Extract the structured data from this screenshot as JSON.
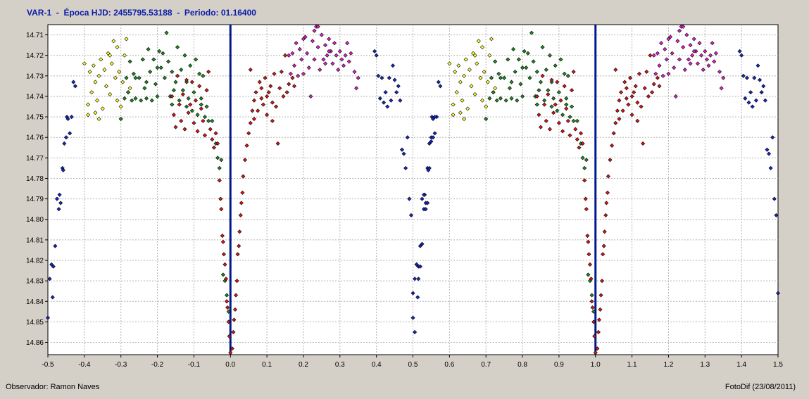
{
  "header": {
    "title": "VAR-1  -  Época HJD: 2455795.53188  -  Periodo: 01.16400"
  },
  "footer": {
    "observer": "Observador: Ramon Naves",
    "credit": "FotoDif (23/08/2011)"
  },
  "chart_data": {
    "type": "scatter",
    "title": "VAR-1  -  Época HJD: 2455795.53188  -  Periodo: 01.16400",
    "xlabel": "",
    "ylabel": "",
    "xlim": [
      -0.5,
      1.5
    ],
    "ylim": [
      14.705,
      14.866
    ],
    "y_inverted": true,
    "grid": true,
    "x_ticks": [
      "-0.5",
      "-0.4",
      "-0.3",
      "-0.2",
      "-0.1",
      "0.0",
      "0.1",
      "0.2",
      "0.3",
      "0.4",
      "0.5",
      "0.6",
      "0.7",
      "0.8",
      "0.9",
      "1.0",
      "1.1",
      "1.2",
      "1.3",
      "1.4",
      "1.5"
    ],
    "y_ticks": [
      "14.71",
      "14.72",
      "14.73",
      "14.74",
      "14.75",
      "14.76",
      "14.77",
      "14.78",
      "14.79",
      "14.80",
      "14.81",
      "14.82",
      "14.83",
      "14.84",
      "14.85",
      "14.86"
    ],
    "vertical_lines": [
      0.0,
      1.0
    ],
    "vertical_line_color": "#001a8c",
    "repeat_period": 1.0,
    "series": [
      {
        "color": "#ffff33",
        "points": [
          [
            -0.4,
            14.724
          ],
          [
            -0.39,
            14.744
          ],
          [
            -0.385,
            14.728
          ],
          [
            -0.38,
            14.738
          ],
          [
            -0.375,
            14.725
          ],
          [
            -0.37,
            14.733
          ],
          [
            -0.365,
            14.742
          ],
          [
            -0.36,
            14.73
          ],
          [
            -0.355,
            14.722
          ],
          [
            -0.35,
            14.746
          ],
          [
            -0.345,
            14.727
          ],
          [
            -0.34,
            14.735
          ],
          [
            -0.335,
            14.719
          ],
          [
            -0.33,
            14.739
          ],
          [
            -0.325,
            14.724
          ],
          [
            -0.32,
            14.713
          ],
          [
            -0.315,
            14.731
          ],
          [
            -0.31,
            14.742
          ],
          [
            -0.305,
            14.728
          ],
          [
            -0.3,
            14.745
          ],
          [
            -0.295,
            14.733
          ],
          [
            -0.29,
            14.72
          ],
          [
            -0.285,
            14.712
          ],
          [
            -0.28,
            14.738
          ],
          [
            -0.275,
            14.736
          ],
          [
            -0.39,
            14.749
          ],
          [
            -0.37,
            14.748
          ],
          [
            -0.36,
            14.751
          ],
          [
            -0.33,
            14.72
          ],
          [
            -0.31,
            14.716
          ]
        ]
      },
      {
        "color": "#1e8c1e",
        "points": [
          [
            -0.3,
            14.751
          ],
          [
            -0.29,
            14.741
          ],
          [
            -0.285,
            14.731
          ],
          [
            -0.28,
            14.738
          ],
          [
            -0.275,
            14.723
          ],
          [
            -0.27,
            14.742
          ],
          [
            -0.265,
            14.729
          ],
          [
            -0.26,
            14.741
          ],
          [
            -0.25,
            14.731
          ],
          [
            -0.245,
            14.742
          ],
          [
            -0.24,
            14.722
          ],
          [
            -0.235,
            14.736
          ],
          [
            -0.23,
            14.741
          ],
          [
            -0.225,
            14.717
          ],
          [
            -0.22,
            14.728
          ],
          [
            -0.215,
            14.742
          ],
          [
            -0.21,
            14.722
          ],
          [
            -0.205,
            14.734
          ],
          [
            -0.2,
            14.74
          ],
          [
            -0.195,
            14.718
          ],
          [
            -0.19,
            14.726
          ],
          [
            -0.185,
            14.719
          ],
          [
            -0.18,
            14.731
          ],
          [
            -0.175,
            14.709
          ],
          [
            -0.17,
            14.723
          ],
          [
            -0.165,
            14.74
          ],
          [
            -0.16,
            14.728
          ],
          [
            -0.155,
            14.737
          ],
          [
            -0.15,
            14.733
          ],
          [
            -0.145,
            14.716
          ],
          [
            -0.14,
            14.742
          ],
          [
            -0.135,
            14.727
          ],
          [
            -0.13,
            14.737
          ],
          [
            -0.125,
            14.72
          ],
          [
            -0.12,
            14.733
          ],
          [
            -0.115,
            14.741
          ],
          [
            -0.11,
            14.725
          ],
          [
            -0.105,
            14.747
          ],
          [
            -0.1,
            14.738
          ],
          [
            -0.095,
            14.722
          ],
          [
            -0.09,
            14.749
          ],
          [
            -0.085,
            14.729
          ],
          [
            -0.08,
            14.741
          ],
          [
            -0.075,
            14.73
          ],
          [
            -0.07,
            14.75
          ],
          [
            -0.065,
            14.745
          ],
          [
            -0.06,
            14.752
          ],
          [
            -0.05,
            14.752
          ],
          [
            -0.04,
            14.763
          ],
          [
            -0.035,
            14.77
          ],
          [
            -0.03,
            14.775
          ],
          [
            -0.025,
            14.771
          ],
          [
            -0.02,
            14.827
          ],
          [
            -0.015,
            14.83
          ],
          [
            -0.01,
            14.837
          ],
          [
            -0.005,
            14.845
          ],
          [
            -0.26,
            14.731
          ],
          [
            -0.23,
            14.733
          ],
          [
            -0.2,
            14.726
          ],
          [
            -0.16,
            14.744
          ],
          [
            -0.08,
            14.744
          ],
          [
            -0.12,
            14.745
          ]
        ]
      },
      {
        "color": "#e01414",
        "points": [
          [
            -0.16,
            14.74
          ],
          [
            -0.155,
            14.749
          ],
          [
            -0.15,
            14.755
          ],
          [
            -0.145,
            14.73
          ],
          [
            -0.14,
            14.744
          ],
          [
            -0.135,
            14.752
          ],
          [
            -0.13,
            14.739
          ],
          [
            -0.125,
            14.756
          ],
          [
            -0.12,
            14.732
          ],
          [
            -0.115,
            14.748
          ],
          [
            -0.11,
            14.744
          ],
          [
            -0.105,
            14.733
          ],
          [
            -0.1,
            14.753
          ],
          [
            -0.095,
            14.742
          ],
          [
            -0.09,
            14.757
          ],
          [
            -0.085,
            14.735
          ],
          [
            -0.08,
            14.746
          ],
          [
            -0.075,
            14.752
          ],
          [
            -0.07,
            14.759
          ],
          [
            -0.065,
            14.737
          ],
          [
            -0.06,
            14.728
          ],
          [
            -0.055,
            14.756
          ],
          [
            -0.05,
            14.761
          ],
          [
            -0.045,
            14.765
          ],
          [
            -0.04,
            14.758
          ],
          [
            -0.035,
            14.763
          ],
          [
            -0.03,
            14.781
          ],
          [
            -0.027,
            14.79
          ],
          [
            -0.025,
            14.795
          ],
          [
            -0.022,
            14.808
          ],
          [
            -0.02,
            14.811
          ],
          [
            -0.018,
            14.817
          ],
          [
            -0.015,
            14.822
          ],
          [
            -0.012,
            14.829
          ],
          [
            -0.01,
            14.84
          ],
          [
            -0.008,
            14.843
          ],
          [
            -0.005,
            14.85
          ],
          [
            -0.003,
            14.857
          ],
          [
            0.0,
            14.865
          ],
          [
            0.005,
            14.863
          ],
          [
            0.008,
            14.855
          ],
          [
            0.01,
            14.849
          ],
          [
            0.013,
            14.844
          ],
          [
            0.015,
            14.837
          ],
          [
            0.018,
            14.83
          ],
          [
            0.02,
            14.817
          ],
          [
            0.023,
            14.813
          ],
          [
            0.025,
            14.806
          ],
          [
            0.028,
            14.798
          ],
          [
            0.03,
            14.792
          ],
          [
            0.033,
            14.787
          ],
          [
            0.035,
            14.779
          ],
          [
            0.04,
            14.771
          ],
          [
            0.045,
            14.764
          ],
          [
            0.05,
            14.758
          ],
          [
            0.055,
            14.753
          ],
          [
            0.06,
            14.747
          ],
          [
            0.065,
            14.742
          ],
          [
            0.07,
            14.738
          ],
          [
            0.075,
            14.747
          ],
          [
            0.08,
            14.733
          ],
          [
            0.085,
            14.741
          ],
          [
            0.09,
            14.744
          ],
          [
            0.095,
            14.731
          ],
          [
            0.1,
            14.749
          ],
          [
            0.105,
            14.738
          ],
          [
            0.11,
            14.735
          ],
          [
            0.115,
            14.743
          ],
          [
            0.12,
            14.729
          ],
          [
            0.125,
            14.745
          ],
          [
            0.13,
            14.763
          ],
          [
            0.135,
            14.736
          ],
          [
            0.14,
            14.728
          ],
          [
            0.145,
            14.74
          ],
          [
            0.15,
            14.72
          ],
          [
            0.155,
            14.738
          ],
          [
            0.16,
            14.734
          ],
          [
            0.17,
            14.731
          ],
          [
            0.175,
            14.735
          ],
          [
            0.055,
            14.727
          ],
          [
            0.065,
            14.751
          ],
          [
            0.085,
            14.736
          ],
          [
            0.1,
            14.74
          ],
          [
            0.115,
            14.752
          ]
        ]
      },
      {
        "color": "#e020c8",
        "points": [
          [
            0.16,
            14.72
          ],
          [
            0.165,
            14.729
          ],
          [
            0.17,
            14.719
          ],
          [
            0.175,
            14.725
          ],
          [
            0.18,
            14.714
          ],
          [
            0.185,
            14.73
          ],
          [
            0.19,
            14.717
          ],
          [
            0.195,
            14.722
          ],
          [
            0.2,
            14.729
          ],
          [
            0.205,
            14.711
          ],
          [
            0.21,
            14.719
          ],
          [
            0.215,
            14.726
          ],
          [
            0.22,
            14.74
          ],
          [
            0.225,
            14.713
          ],
          [
            0.23,
            14.722
          ],
          [
            0.235,
            14.706
          ],
          [
            0.24,
            14.716
          ],
          [
            0.245,
            14.727
          ],
          [
            0.25,
            14.71
          ],
          [
            0.255,
            14.722
          ],
          [
            0.26,
            14.715
          ],
          [
            0.265,
            14.72
          ],
          [
            0.27,
            14.712
          ],
          [
            0.275,
            14.718
          ],
          [
            0.28,
            14.724
          ],
          [
            0.285,
            14.714
          ],
          [
            0.29,
            14.72
          ],
          [
            0.295,
            14.727
          ],
          [
            0.3,
            14.718
          ],
          [
            0.305,
            14.722
          ],
          [
            0.31,
            14.725
          ],
          [
            0.315,
            14.72
          ],
          [
            0.32,
            14.714
          ],
          [
            0.325,
            14.723
          ],
          [
            0.33,
            14.719
          ],
          [
            0.34,
            14.728
          ],
          [
            0.345,
            14.736
          ],
          [
            0.35,
            14.731
          ],
          [
            0.23,
            14.708
          ],
          [
            0.24,
            14.706
          ],
          [
            0.27,
            14.718
          ],
          [
            0.26,
            14.724
          ],
          [
            0.2,
            14.712
          ]
        ]
      },
      {
        "color": "#1428c8",
        "points": [
          [
            -0.5,
            14.848
          ],
          [
            -0.495,
            14.829
          ],
          [
            -0.49,
            14.822
          ],
          [
            -0.487,
            14.838
          ],
          [
            -0.485,
            14.823
          ],
          [
            -0.48,
            14.813
          ],
          [
            -0.475,
            14.79
          ],
          [
            -0.47,
            14.795
          ],
          [
            -0.468,
            14.788
          ],
          [
            -0.465,
            14.792
          ],
          [
            -0.46,
            14.775
          ],
          [
            -0.458,
            14.776
          ],
          [
            -0.455,
            14.763
          ],
          [
            -0.45,
            14.76
          ],
          [
            -0.448,
            14.75
          ],
          [
            -0.445,
            14.751
          ],
          [
            -0.44,
            14.758
          ],
          [
            -0.435,
            14.75
          ],
          [
            -0.43,
            14.733
          ],
          [
            -0.425,
            14.735
          ],
          [
            0.395,
            14.718
          ],
          [
            0.4,
            14.72
          ],
          [
            0.405,
            14.73
          ],
          [
            0.41,
            14.741
          ],
          [
            0.415,
            14.731
          ],
          [
            0.42,
            14.743
          ],
          [
            0.425,
            14.738
          ],
          [
            0.43,
            14.745
          ],
          [
            0.435,
            14.731
          ],
          [
            0.44,
            14.742
          ],
          [
            0.445,
            14.725
          ],
          [
            0.45,
            14.732
          ],
          [
            0.455,
            14.738
          ],
          [
            0.46,
            14.735
          ],
          [
            0.465,
            14.742
          ],
          [
            0.47,
            14.766
          ],
          [
            0.475,
            14.768
          ],
          [
            0.48,
            14.775
          ],
          [
            0.485,
            14.76
          ],
          [
            0.49,
            14.79
          ],
          [
            0.495,
            14.798
          ],
          [
            0.5,
            14.836
          ],
          [
            0.505,
            14.855
          ],
          [
            0.51,
            14.822
          ],
          [
            0.515,
            14.829
          ],
          [
            0.52,
            14.823
          ],
          [
            0.525,
            14.812
          ],
          [
            0.53,
            14.788
          ],
          [
            0.535,
            14.795
          ],
          [
            0.54,
            14.792
          ],
          [
            0.545,
            14.775
          ],
          [
            0.55,
            14.762
          ],
          [
            0.555,
            14.76
          ],
          [
            0.56,
            14.75
          ]
        ]
      }
    ]
  }
}
